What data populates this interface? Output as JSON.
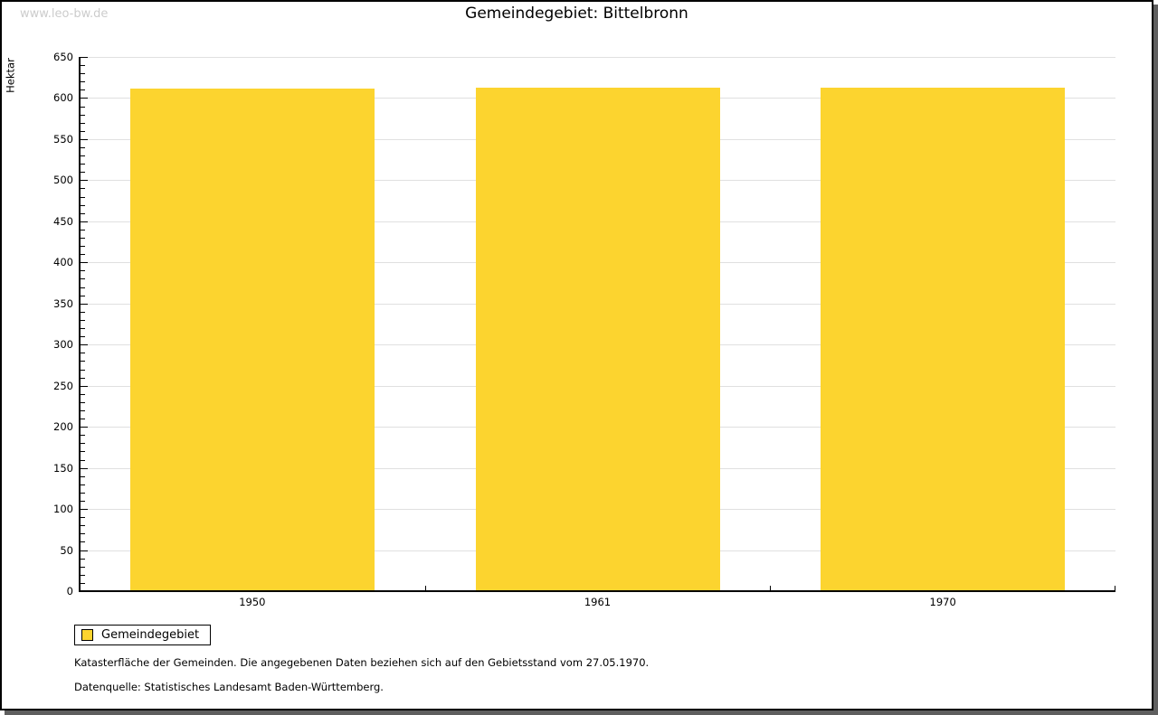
{
  "watermark": "www.leo-bw.de",
  "title": "Gemeindegebiet: Bittelbronn",
  "chart_data": {
    "type": "bar",
    "title": "Gemeindegebiet: Bittelbronn",
    "categories": [
      "1950",
      "1961",
      "1970"
    ],
    "series": [
      {
        "name": "Gemeindegebiet",
        "values": [
          612,
          613,
          613
        ]
      }
    ],
    "xlabel": "",
    "ylabel": "Hektar",
    "ylim": [
      0,
      650
    ],
    "ytick_major": 50,
    "ytick_minor": 10,
    "grid": true,
    "legend_position": "bottom-left",
    "bar_color": "#FCD42F",
    "gridline_color": "#e0e0e0"
  },
  "legend": {
    "items": [
      {
        "label": "Gemeindegebiet",
        "color": "#FCD42F"
      }
    ]
  },
  "footer": {
    "line1": "Katasterfläche der Gemeinden. Die angegebenen Daten beziehen sich auf den Gebietsstand vom 27.05.1970.",
    "line2": "Datenquelle: Statistisches Landesamt Baden-Württemberg."
  }
}
